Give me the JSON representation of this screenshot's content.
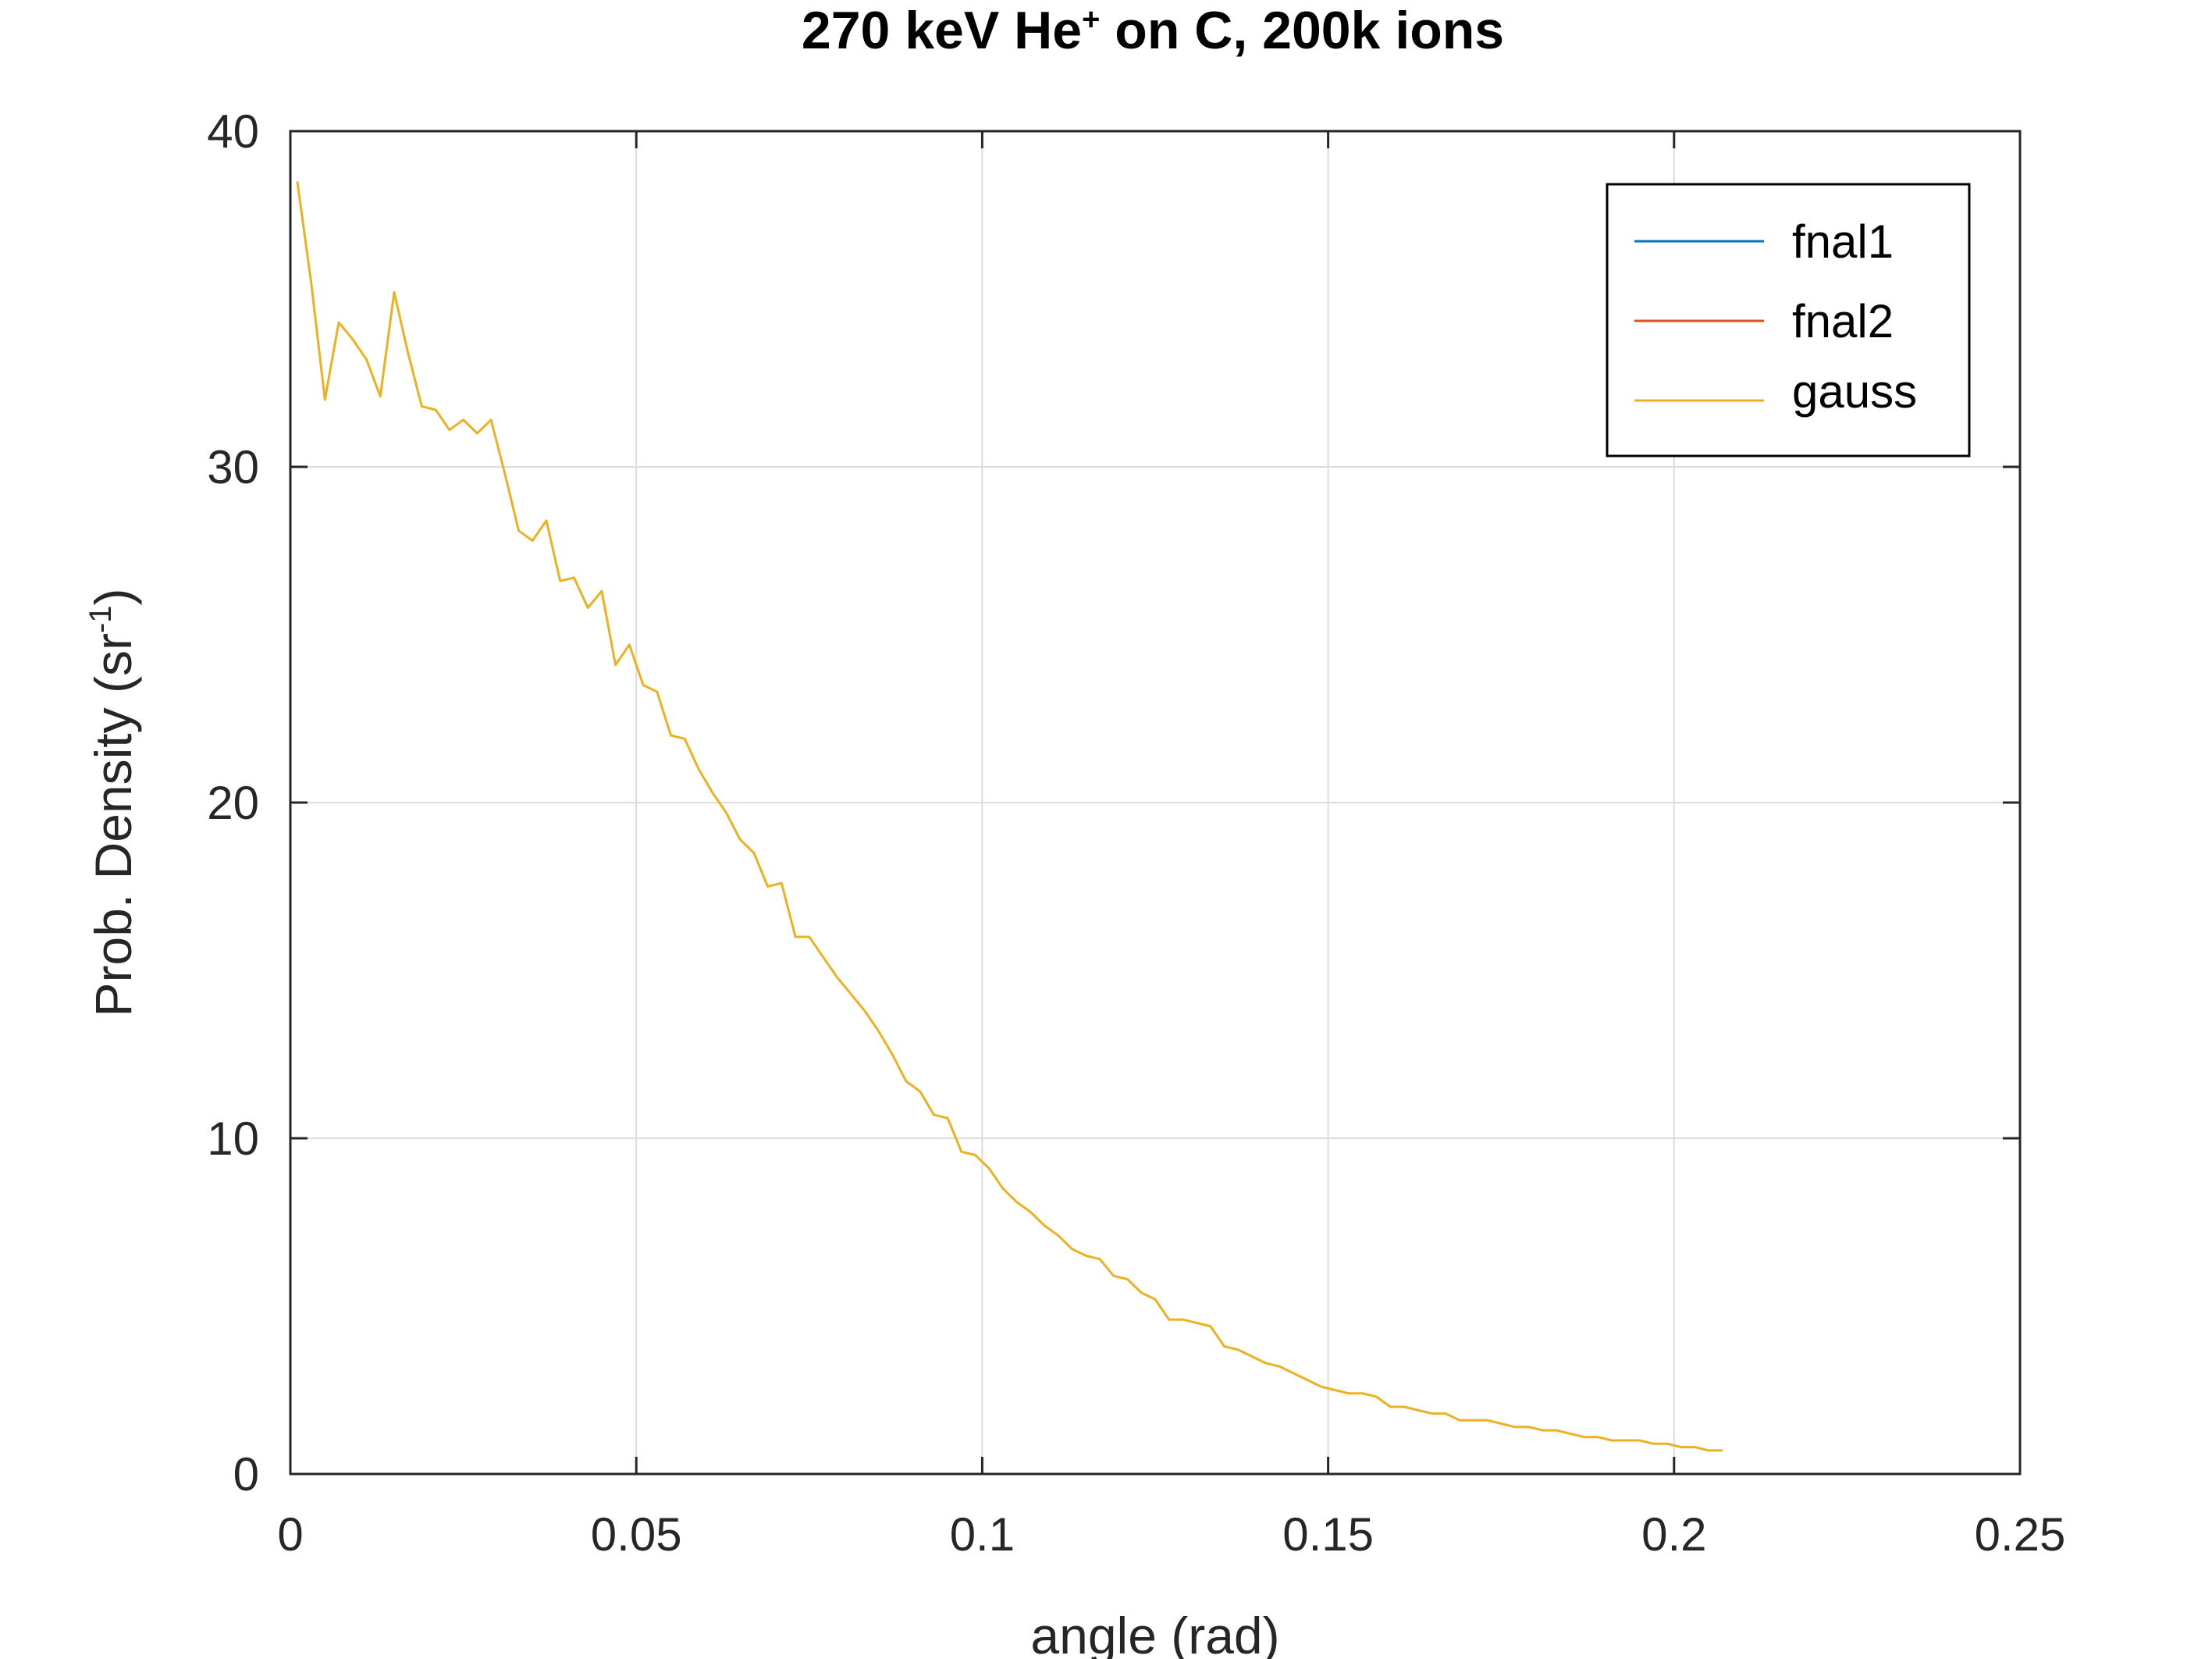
{
  "chart_data": {
    "type": "line",
    "title": {
      "main": "270 keV He",
      "sup": "+",
      "rest": " on C, 200k ions"
    },
    "xlabel": "angle (rad)",
    "ylabel": {
      "main": "Prob. Density (sr",
      "sup": "-1",
      "rest": ")"
    },
    "xlim": [
      0,
      0.25
    ],
    "ylim": [
      0,
      40
    ],
    "x_ticks": [
      0,
      0.05,
      0.1,
      0.15,
      0.2,
      0.25
    ],
    "x_tick_labels": [
      "0",
      "0.05",
      "0.1",
      "0.15",
      "0.2",
      "0.25"
    ],
    "y_ticks": [
      0,
      10,
      20,
      30,
      40
    ],
    "y_tick_labels": [
      "0",
      "10",
      "20",
      "30",
      "40"
    ],
    "grid": true,
    "legend_position": "top-right",
    "series": [
      {
        "name": "fnal1",
        "color": "#0072BD",
        "x": [],
        "y": []
      },
      {
        "name": "fnal2",
        "color": "#D95319",
        "x": [],
        "y": []
      },
      {
        "name": "gauss",
        "color": "#EDB120",
        "x": [
          0.001,
          0.003,
          0.005,
          0.007,
          0.009,
          0.011,
          0.013,
          0.015,
          0.017,
          0.019,
          0.021,
          0.023,
          0.025,
          0.027,
          0.029,
          0.031,
          0.033,
          0.035,
          0.037,
          0.039,
          0.041,
          0.043,
          0.045,
          0.047,
          0.049,
          0.051,
          0.053,
          0.055,
          0.057,
          0.059,
          0.061,
          0.063,
          0.065,
          0.067,
          0.069,
          0.071,
          0.073,
          0.075,
          0.077,
          0.079,
          0.081,
          0.083,
          0.085,
          0.087,
          0.089,
          0.091,
          0.093,
          0.095,
          0.097,
          0.099,
          0.101,
          0.103,
          0.105,
          0.107,
          0.109,
          0.111,
          0.113,
          0.115,
          0.117,
          0.119,
          0.121,
          0.123,
          0.125,
          0.127,
          0.129,
          0.131,
          0.133,
          0.135,
          0.137,
          0.139,
          0.141,
          0.143,
          0.145,
          0.147,
          0.149,
          0.151,
          0.153,
          0.155,
          0.157,
          0.159,
          0.161,
          0.163,
          0.165,
          0.167,
          0.169,
          0.171,
          0.173,
          0.175,
          0.177,
          0.179,
          0.181,
          0.183,
          0.185,
          0.187,
          0.189,
          0.191,
          0.193,
          0.195,
          0.197,
          0.199,
          0.201,
          0.203,
          0.205,
          0.207
        ],
        "y": [
          38.5,
          35.5,
          32.0,
          34.3,
          33.8,
          33.2,
          32.1,
          35.2,
          33.4,
          31.8,
          31.7,
          31.1,
          31.4,
          31.0,
          31.4,
          29.8,
          28.1,
          27.8,
          28.4,
          26.6,
          26.7,
          25.8,
          26.3,
          24.1,
          24.7,
          23.5,
          23.3,
          22.0,
          21.9,
          21.0,
          20.3,
          19.7,
          18.9,
          18.5,
          17.5,
          17.6,
          16.0,
          16.0,
          15.4,
          14.8,
          14.3,
          13.8,
          13.2,
          12.5,
          11.7,
          11.4,
          10.7,
          10.6,
          9.6,
          9.5,
          9.1,
          8.5,
          8.1,
          7.8,
          7.4,
          7.1,
          6.7,
          6.5,
          6.4,
          5.9,
          5.8,
          5.4,
          5.2,
          4.6,
          4.6,
          4.5,
          4.4,
          3.8,
          3.7,
          3.5,
          3.3,
          3.2,
          3.0,
          2.8,
          2.6,
          2.5,
          2.4,
          2.4,
          2.3,
          2.0,
          2.0,
          1.9,
          1.8,
          1.8,
          1.6,
          1.6,
          1.6,
          1.5,
          1.4,
          1.4,
          1.3,
          1.3,
          1.2,
          1.1,
          1.1,
          1.0,
          1.0,
          1.0,
          0.9,
          0.9,
          0.8,
          0.8,
          0.7,
          0.7
        ]
      }
    ]
  }
}
